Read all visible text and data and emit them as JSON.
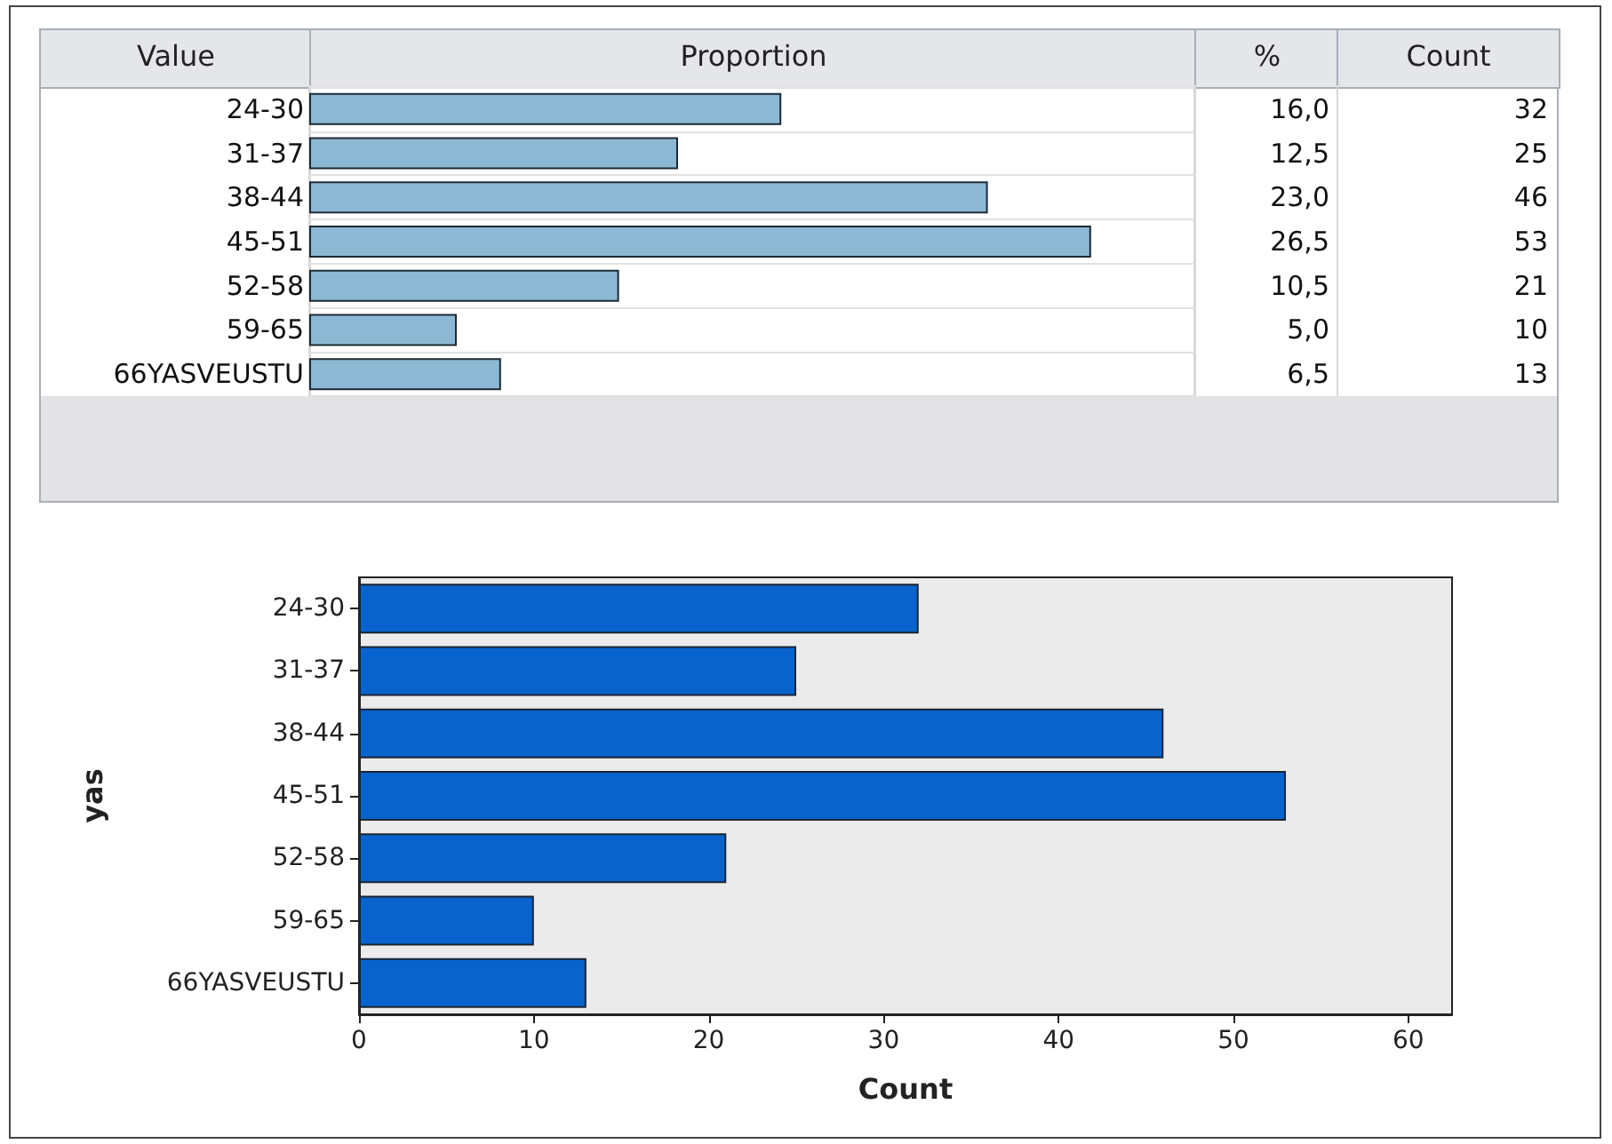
{
  "chart_data": [
    {
      "type": "bar",
      "orientation": "horizontal",
      "categories": [
        "24-30",
        "31-37",
        "38-44",
        "45-51",
        "52-58",
        "59-65",
        "66YASVEUSTU"
      ],
      "values": [
        16.0,
        12.5,
        23.0,
        26.5,
        10.5,
        5.0,
        6.5
      ],
      "value_labels": [
        "16,0",
        "12,5",
        "23,0",
        "26,5",
        "10,5",
        "5,0",
        "6,5"
      ],
      "color": "#8cb8d3",
      "tick_labels": "y",
      "annotations": [
        "Value",
        "Proportion",
        "%",
        "Count",
        "32",
        "25",
        "46",
        "53",
        "21",
        "10",
        "13"
      ]
    },
    {
      "type": "bar",
      "orientation": "horizontal",
      "categories": [
        "24-30",
        "31-37",
        "38-44",
        "45-51",
        "52-58",
        "59-65",
        "66YASVEUSTU"
      ],
      "values": [
        32,
        25,
        46,
        53,
        21,
        10,
        13
      ],
      "color": "#0863cc",
      "xlim": [
        0,
        62.5
      ],
      "xticks": [
        0,
        10,
        20,
        30,
        40,
        50,
        60
      ],
      "xlabel": "Count",
      "ylabel": "yas"
    }
  ]
}
